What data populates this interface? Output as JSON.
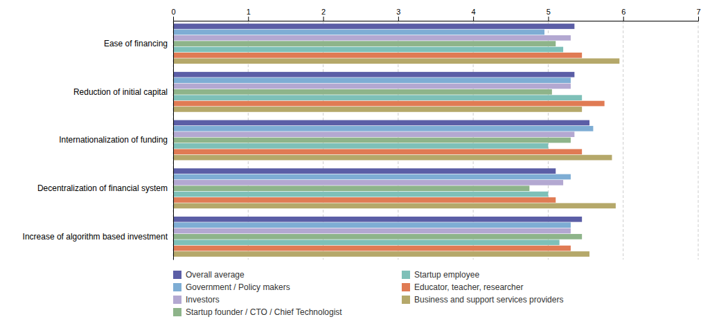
{
  "chart_data": {
    "type": "bar",
    "orientation": "horizontal",
    "categories": [
      "Ease of financing",
      "Reduction of initial capital",
      "Internationalization of funding",
      "Decentralization of financial system",
      "Increase of algorithm based investment"
    ],
    "series": [
      {
        "name": "Overall average",
        "color": "#5b5ea6",
        "values": [
          5.35,
          5.35,
          5.55,
          5.1,
          5.45
        ]
      },
      {
        "name": "Government / Policy makers",
        "color": "#7eadd4",
        "values": [
          4.95,
          5.3,
          5.6,
          5.3,
          5.3
        ]
      },
      {
        "name": "Investors",
        "color": "#b3a8d1",
        "values": [
          5.3,
          5.3,
          5.35,
          5.2,
          5.3
        ]
      },
      {
        "name": "Startup founder / CTO / Chief Technologist",
        "color": "#8eb48a",
        "values": [
          5.1,
          5.05,
          5.3,
          4.75,
          5.45
        ]
      },
      {
        "name": "Startup employee",
        "color": "#7ec0b8",
        "values": [
          5.2,
          5.45,
          5.0,
          5.0,
          5.15
        ]
      },
      {
        "name": "Educator, teacher, researcher",
        "color": "#e07b54",
        "values": [
          5.45,
          5.75,
          5.45,
          5.1,
          5.3
        ]
      },
      {
        "name": "Business and support services providers",
        "color": "#b5a86a",
        "values": [
          5.95,
          5.45,
          5.85,
          5.9,
          5.55
        ]
      }
    ],
    "xlim": [
      0,
      7
    ],
    "xticks": [
      0,
      1,
      2,
      3,
      4,
      5,
      6,
      7
    ],
    "grid": true,
    "legend": "bottom"
  }
}
